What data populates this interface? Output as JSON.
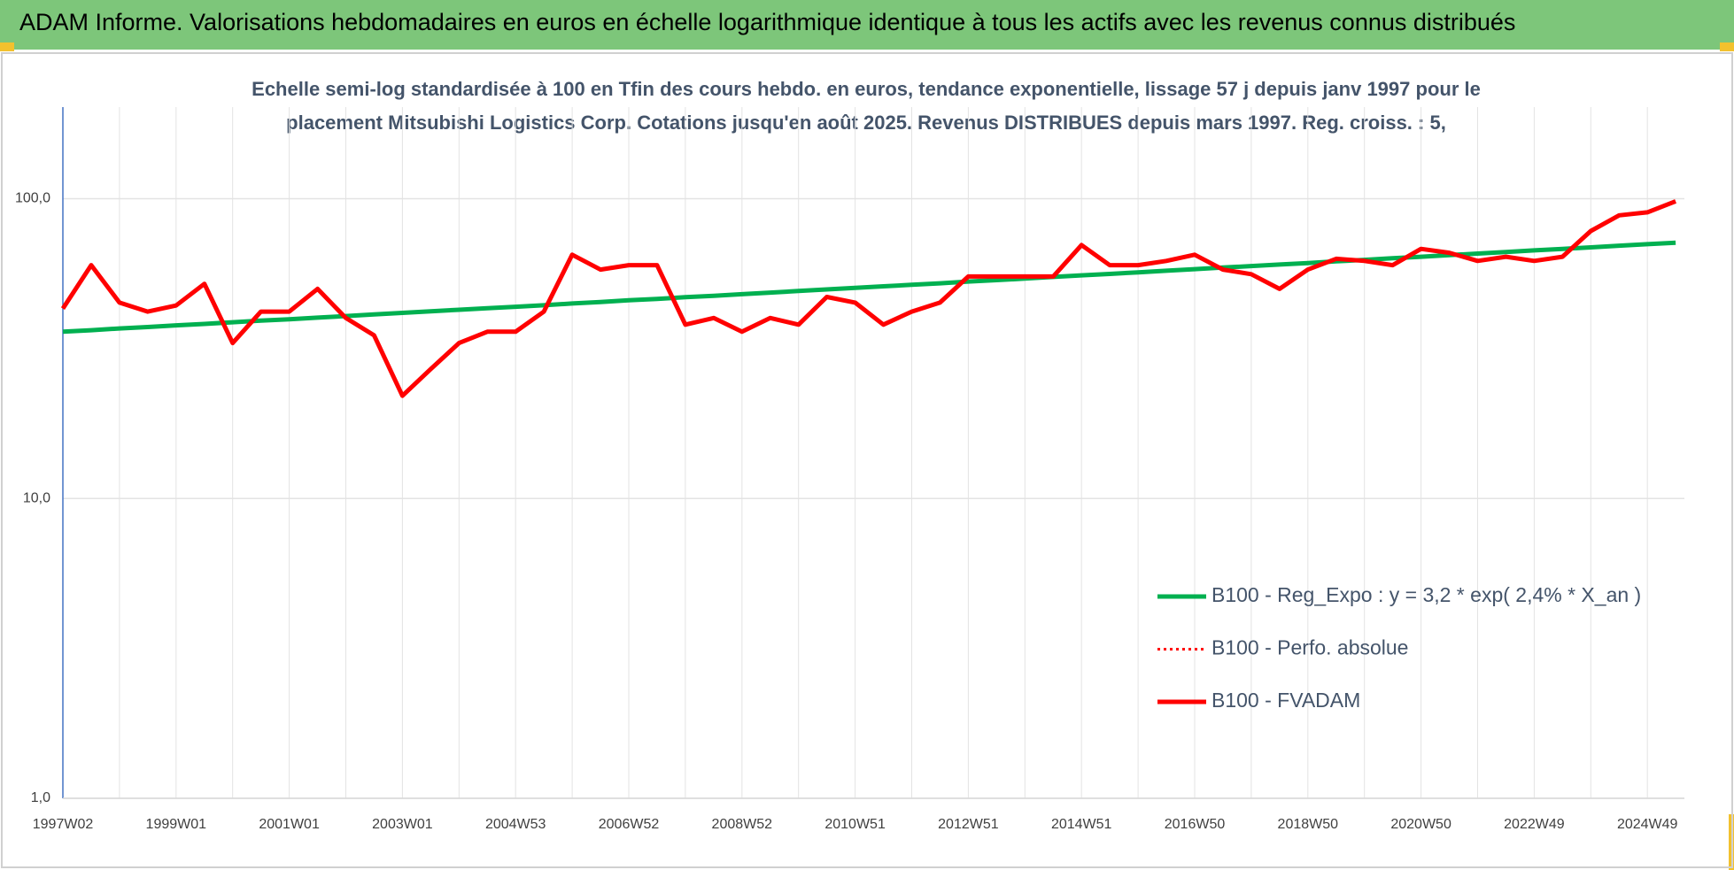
{
  "chart_data": {
    "type": "line",
    "title": "ADAM Informe. Valorisations hebdomadaires en euros en échelle logarithmique identique à tous les actifs avec les revenus connus distribués",
    "subtitle": [
      "Echelle semi-log standardisée à 100 en Tfin des cours hebdo. en euros, tendance exponentielle, lissage 57 j depuis janv 1997 pour le",
      "placement Mitsubishi Logistics Corp. Cotations jusqu'en août 2025. Revenus DISTRIBUES depuis mars 1997. Reg. croiss. : 5,"
    ],
    "categories": [
      "1997W02",
      null,
      null,
      null,
      "1999W01",
      null,
      null,
      null,
      "2001W01",
      null,
      null,
      null,
      "2003W01",
      null,
      null,
      null,
      "2004W53",
      null,
      null,
      null,
      "2006W52",
      null,
      null,
      null,
      "2008W52",
      null,
      null,
      null,
      "2010W51",
      null,
      null,
      null,
      "2012W51",
      null,
      null,
      null,
      "2014W51",
      null,
      null,
      null,
      "2016W50",
      null,
      null,
      null,
      "2018W50",
      null,
      null,
      null,
      "2020W50",
      null,
      null,
      null,
      "2022W49",
      null,
      null,
      null,
      "2024W49",
      null
    ],
    "log_scale": true,
    "grid": true,
    "ylim": [
      1,
      202
    ],
    "yticks": [
      {
        "value": 1,
        "label": "1,0"
      },
      {
        "value": 10,
        "label": "10,0"
      },
      {
        "value": 100,
        "label": "100,0"
      }
    ],
    "series": [
      {
        "name": "B100 - Reg_Expo : y = 3,2 * exp( 2,4% *  X_an )",
        "color": "#00b050",
        "line_style": "solid",
        "values": [
          36.0,
          36.4,
          36.9,
          37.3,
          37.8,
          38.2,
          38.7,
          39.2,
          39.6,
          40.1,
          40.6,
          41.1,
          41.6,
          42.1,
          42.6,
          43.1,
          43.6,
          44.1,
          44.7,
          45.2,
          45.8,
          46.3,
          46.9,
          47.4,
          48.0,
          48.6,
          49.2,
          49.8,
          50.4,
          51.0,
          51.6,
          52.2,
          52.9,
          53.5,
          54.1,
          54.8,
          55.5,
          56.1,
          56.8,
          57.5,
          58.2,
          58.9,
          59.6,
          60.3,
          61.0,
          61.8,
          62.5,
          63.3,
          64.0,
          64.8,
          65.6,
          66.4,
          67.2,
          68.0,
          68.8,
          69.7,
          70.5,
          71.3
        ]
      },
      {
        "name": "B100 - Perfo. absolue",
        "color": "#ff0000",
        "line_style": "dotted",
        "values": [
          43,
          60,
          45,
          42,
          44,
          52,
          33,
          42,
          42,
          50,
          40,
          35,
          22,
          27,
          33,
          36,
          36,
          42,
          65,
          58,
          60,
          60,
          38,
          40,
          36,
          40,
          38,
          47,
          45,
          38,
          42,
          45,
          55,
          55,
          55,
          55,
          70,
          60,
          60,
          62,
          65,
          58,
          56,
          50,
          58,
          63,
          62,
          60,
          68,
          66,
          62,
          64,
          62,
          64,
          78,
          88,
          90,
          98
        ]
      },
      {
        "name": "B100 - FVADAM",
        "color": "#ff0000",
        "line_style": "solid",
        "values": [
          43,
          60,
          45,
          42,
          44,
          52,
          33,
          42,
          42,
          50,
          40,
          35,
          22,
          27,
          33,
          36,
          36,
          42,
          65,
          58,
          60,
          60,
          38,
          40,
          36,
          40,
          38,
          47,
          45,
          38,
          42,
          45,
          55,
          55,
          55,
          55,
          70,
          60,
          60,
          62,
          65,
          58,
          56,
          50,
          58,
          63,
          62,
          60,
          68,
          66,
          62,
          64,
          62,
          64,
          78,
          88,
          90,
          98
        ]
      }
    ]
  }
}
